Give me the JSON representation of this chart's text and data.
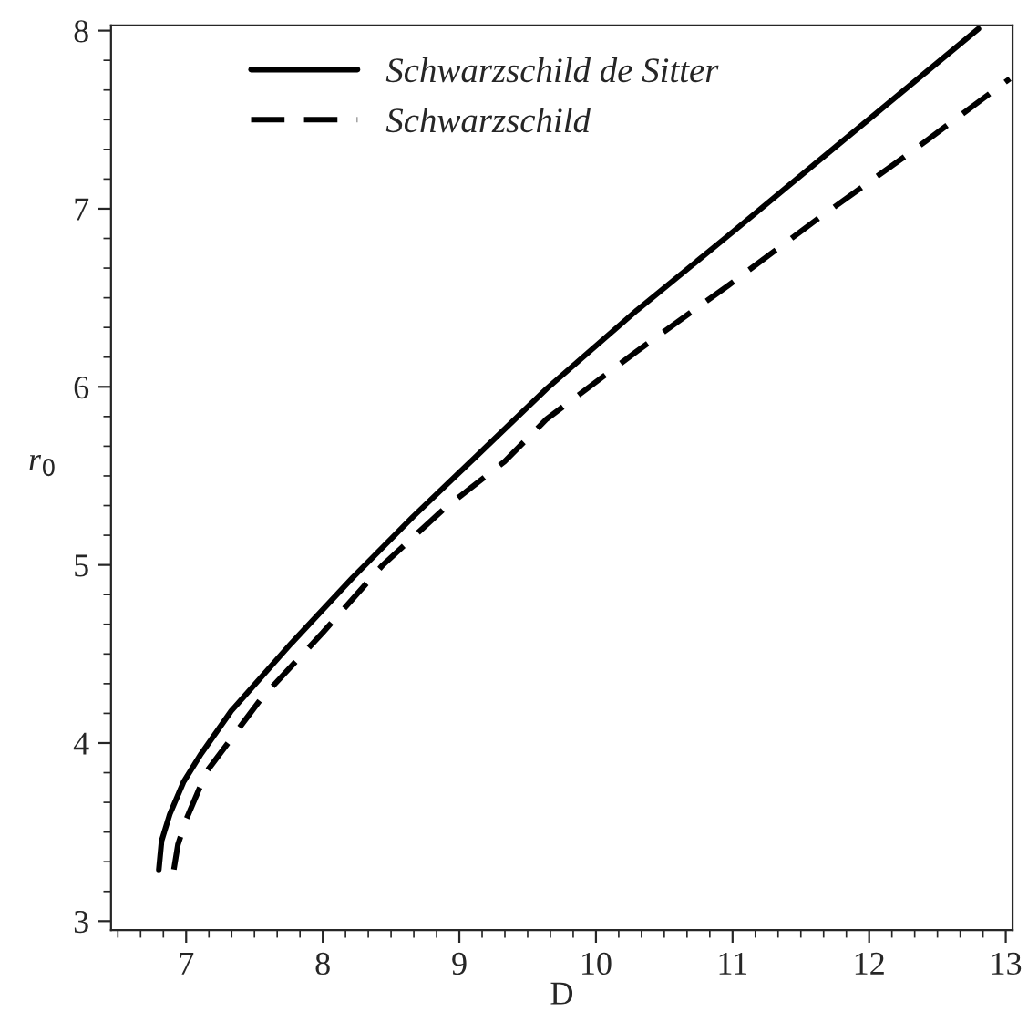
{
  "chart_data": {
    "type": "line",
    "xlabel": "D",
    "ylabel": "r$_{0}$",
    "xlim": [
      6.45,
      13.05
    ],
    "ylim": [
      2.95,
      8.03
    ],
    "xticks": [
      7,
      8,
      9,
      10,
      11,
      12,
      13
    ],
    "yticks": [
      3,
      4,
      5,
      6,
      7,
      8
    ],
    "legend": "top left",
    "grid": false,
    "series": [
      {
        "name": "Schwarzschild de Sitter",
        "color": "#000000",
        "line_style": "solid",
        "x": [
          6.8,
          6.82,
          6.88,
          6.98,
          7.11,
          7.33,
          7.77,
          8.22,
          8.66,
          9.11,
          9.64,
          10.3,
          10.97,
          11.6,
          12.2,
          12.8
        ],
        "values": [
          3.29,
          3.45,
          3.6,
          3.78,
          3.94,
          4.18,
          4.56,
          4.93,
          5.27,
          5.6,
          5.99,
          6.43,
          6.85,
          7.25,
          7.63,
          8.01
        ]
      },
      {
        "name": "Schwarzschild",
        "color": "#000000",
        "line_style": "dashed",
        "x": [
          6.91,
          6.94,
          7.0,
          7.15,
          7.55,
          8.0,
          8.44,
          8.88,
          9.33,
          9.64,
          10.3,
          10.97,
          11.6,
          12.31,
          13.03
        ],
        "values": [
          3.29,
          3.43,
          3.57,
          3.84,
          4.25,
          4.62,
          5.0,
          5.31,
          5.58,
          5.82,
          6.2,
          6.57,
          6.93,
          7.32,
          7.73
        ]
      }
    ]
  }
}
